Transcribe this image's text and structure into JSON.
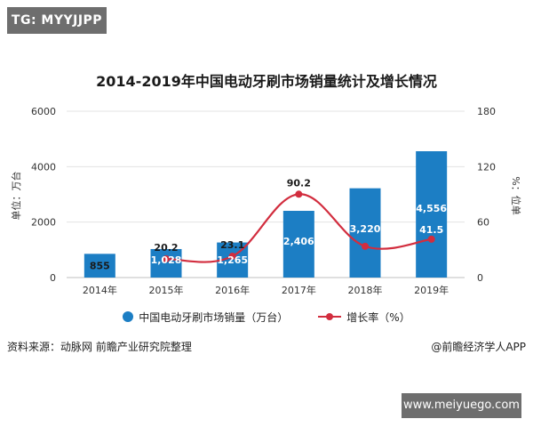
{
  "watermark_top": "TG: MYYJJPP",
  "watermark_bottom": "www.meiyuego.com",
  "source": "资料来源：动脉网 前瞻产业研究院整理",
  "credit": "@前瞻经济学人APP",
  "colors": {
    "bar": "#1c7ec4",
    "line": "#d22d3e",
    "grid": "#e3e3e3"
  },
  "chart_data": {
    "type": "bar",
    "title": "2014-2019年中国电动牙刷市场销量统计及增长情况",
    "categories": [
      "2014年",
      "2015年",
      "2016年",
      "2017年",
      "2018年",
      "2019年"
    ],
    "ylabel_left": "单位：万台",
    "ylabel_right": "%：位单",
    "ylim_left": [
      0,
      6000
    ],
    "ylim_right": [
      0,
      180
    ],
    "yticks_left": [
      0,
      2000,
      4000,
      6000
    ],
    "yticks_right": [
      0,
      60,
      120,
      180
    ],
    "series": [
      {
        "name": "中国电动牙刷市场销量（万台）",
        "type": "bar",
        "axis": "left",
        "values": [
          855,
          1028,
          1265,
          2406,
          3220,
          4556
        ],
        "labels": [
          "855",
          "1,028",
          "1,265",
          "2,406",
          "3,220",
          "4,556"
        ]
      },
      {
        "name": "增长率（%）",
        "type": "line",
        "axis": "right",
        "values": [
          null,
          20.2,
          23.1,
          90.2,
          33.8,
          41.5
        ],
        "labels": [
          "",
          "20.2",
          "23.1",
          "90.2",
          "",
          "41.5"
        ]
      }
    ],
    "grid": true,
    "legend": "bottom-center"
  }
}
